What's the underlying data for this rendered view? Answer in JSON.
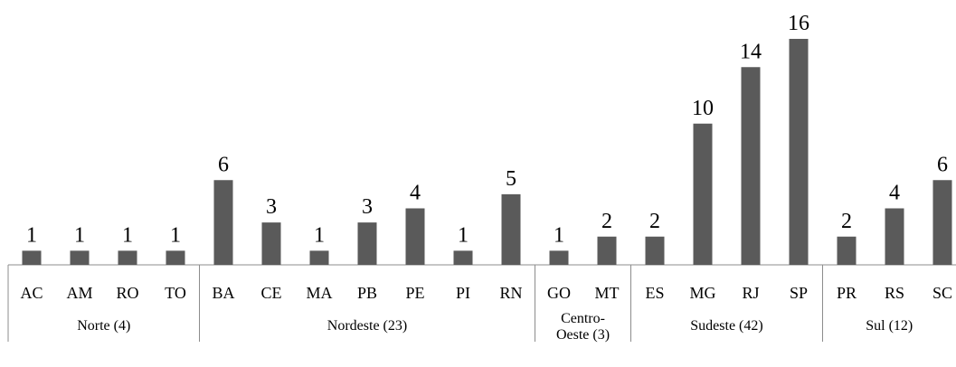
{
  "chart_data": {
    "type": "bar",
    "title": "",
    "xlabel": "",
    "ylabel": "",
    "ylim": [
      0,
      16
    ],
    "grid": false,
    "legend": "none",
    "bar_color": "#5a5a5a",
    "categories": [
      "AC",
      "AM",
      "RO",
      "TO",
      "BA",
      "CE",
      "MA",
      "PB",
      "PE",
      "PI",
      "RN",
      "GO",
      "MT",
      "ES",
      "MG",
      "RJ",
      "SP",
      "PR",
      "RS",
      "SC"
    ],
    "values": [
      1,
      1,
      1,
      1,
      6,
      3,
      1,
      3,
      4,
      1,
      5,
      1,
      2,
      2,
      10,
      14,
      16,
      2,
      4,
      6
    ],
    "groups": [
      {
        "label": [
          "Norte (4)"
        ],
        "categories": [
          "AC",
          "AM",
          "RO",
          "TO"
        ]
      },
      {
        "label": [
          "Nordeste (23)"
        ],
        "categories": [
          "BA",
          "CE",
          "MA",
          "PB",
          "PE",
          "PI",
          "RN"
        ]
      },
      {
        "label": [
          "Centro-",
          "Oeste (3)"
        ],
        "categories": [
          "GO",
          "MT"
        ]
      },
      {
        "label": [
          "Sudeste (42)"
        ],
        "categories": [
          "ES",
          "MG",
          "RJ",
          "SP"
        ]
      },
      {
        "label": [
          "Sul (12)"
        ],
        "categories": [
          "PR",
          "RS",
          "SC"
        ]
      }
    ]
  }
}
